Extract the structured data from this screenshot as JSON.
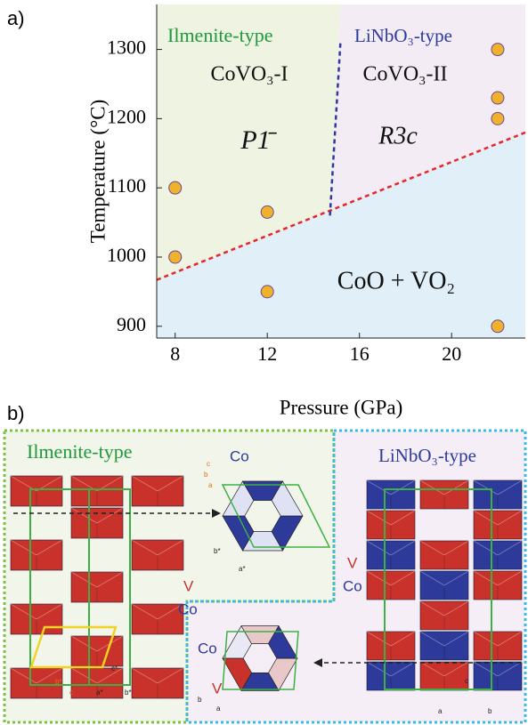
{
  "panel_a_label": "a)",
  "chart_data": {
    "type": "scatter",
    "x": [
      8,
      8,
      12,
      12,
      22,
      22,
      22,
      22
    ],
    "values": [
      1100,
      1000,
      1065,
      950,
      1300,
      1230,
      1200,
      900
    ],
    "color": "#f0b22a",
    "xlim": [
      7.2,
      23.2
    ],
    "ylim": [
      883,
      1365
    ],
    "xticks": [
      8,
      12,
      16,
      20
    ],
    "yticks": [
      900,
      1000,
      1100,
      1200,
      1300
    ],
    "xlabel": "Pressure (GPa)",
    "ylabel": "Temperature (°C)",
    "boundaries": [
      {
        "x": [
          7.2,
          23.2
        ],
        "y": [
          967,
          1180
        ],
        "color": "#e8262a"
      },
      {
        "x": [
          14.72,
          15.18
        ],
        "y": [
          1060,
          1313
        ],
        "color": "#2b3a9e"
      }
    ],
    "region_colors": [
      "#eef4e1",
      "#f4ecf4",
      "#e0eff8"
    ],
    "annotations": [
      {
        "text": "Ilmenite-type",
        "color": "#1f9a3a"
      },
      {
        "text": "LiNbO₃-type",
        "color": "#2b3a9e"
      },
      {
        "text": "CoVO₃-I",
        "color": "#111111"
      },
      {
        "text": "CoVO₃-II",
        "color": "#111111"
      },
      {
        "text": "P1̄",
        "color": "#111111"
      },
      {
        "text": "R3c",
        "color": "#111111"
      },
      {
        "text": "CoO + VO₂",
        "color": "#111111"
      }
    ]
  },
  "panel_b": {
    "label": "b)",
    "left_title": "Ilmenite-type",
    "right_title": "LiNbO₃-type",
    "atom_labels": [
      "Co",
      "V",
      "Co",
      "V",
      "Co",
      "Co",
      "V"
    ],
    "axis_labels": [
      "c",
      "b",
      "a",
      "b*",
      "a*",
      "b*",
      "c",
      "c*",
      "a*",
      "b*",
      "b",
      "a",
      "c",
      "a",
      "b"
    ]
  }
}
